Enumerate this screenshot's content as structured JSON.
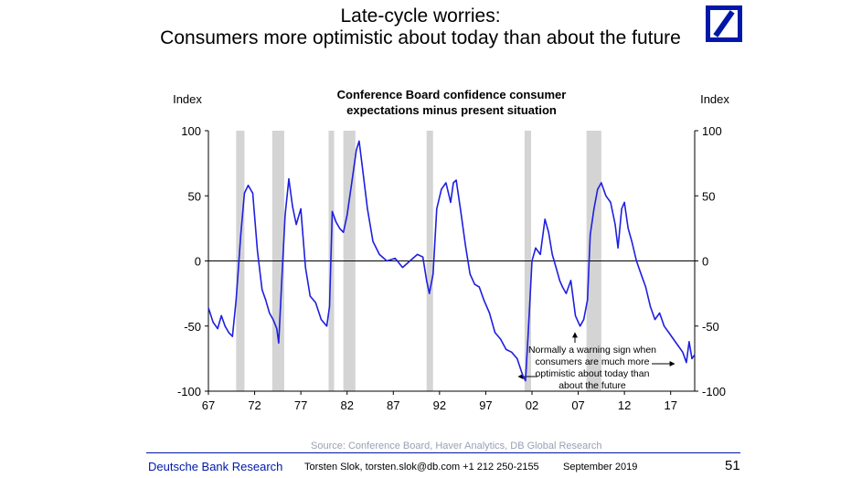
{
  "slide": {
    "title_line1": "Late-cycle worries:",
    "title_line2": "Consumers more optimistic about today than about the future"
  },
  "footer": {
    "brand": "Deutsche Bank Research",
    "contact": "Torsten Slok, torsten.slok@db.com  +1 212 250-2155",
    "date": "September 2019",
    "page": "51",
    "source": "Source: Conference Board, Haver Analytics, DB Global Research"
  },
  "colors": {
    "line": "#1f1fe0",
    "recession": "#d4d4d4",
    "brand": "#0018a8"
  },
  "chart_data": {
    "type": "line",
    "title": "Conference Board confidence consumer expectations minus present situation",
    "title_lines": [
      "Conference Board confidence consumer",
      "expectations minus present situation"
    ],
    "ylabel_left": "Index",
    "ylabel_right": "Index",
    "ylim": [
      -100,
      100
    ],
    "yticks": [
      -100,
      -50,
      0,
      50,
      100
    ],
    "xlim": [
      1967,
      2019.6
    ],
    "xticks": [
      {
        "x": 1967,
        "label": "67"
      },
      {
        "x": 1972,
        "label": "72"
      },
      {
        "x": 1977,
        "label": "77"
      },
      {
        "x": 1982,
        "label": "82"
      },
      {
        "x": 1987,
        "label": "87"
      },
      {
        "x": 1992,
        "label": "92"
      },
      {
        "x": 1997,
        "label": "97"
      },
      {
        "x": 2002,
        "label": "02"
      },
      {
        "x": 2007,
        "label": "07"
      },
      {
        "x": 2012,
        "label": "12"
      },
      {
        "x": 2017,
        "label": "17"
      }
    ],
    "recessions": [
      [
        1970.0,
        1970.9
      ],
      [
        1973.9,
        1975.2
      ],
      [
        1980.0,
        1980.6
      ],
      [
        1981.6,
        1982.9
      ],
      [
        1990.6,
        1991.3
      ],
      [
        2001.2,
        2001.9
      ],
      [
        2007.9,
        2009.5
      ]
    ],
    "series": [
      {
        "x": [
          1967.0,
          1967.5,
          1968.0,
          1968.4,
          1968.8,
          1969.2,
          1969.6,
          1970.0,
          1970.5,
          1970.9,
          1971.3,
          1971.8,
          1972.3,
          1972.8,
          1973.2,
          1973.6,
          1974.0,
          1974.4,
          1974.6,
          1974.9,
          1975.3,
          1975.7,
          1976.1,
          1976.5,
          1977.0,
          1977.5,
          1978.0,
          1978.6,
          1979.2,
          1979.8,
          1980.1,
          1980.4,
          1980.8,
          1981.2,
          1981.6,
          1982.0,
          1982.5,
          1983.0,
          1983.3,
          1983.6,
          1984.2,
          1984.8,
          1985.5,
          1986.3,
          1987.2,
          1988.0,
          1988.8,
          1989.6,
          1990.2,
          1990.6,
          1990.9,
          1991.3,
          1991.7,
          1992.2,
          1992.7,
          1993.2,
          1993.5,
          1993.8,
          1994.3,
          1994.8,
          1995.3,
          1995.8,
          1996.3,
          1996.8,
          1997.4,
          1998.0,
          1998.6,
          1999.2,
          1999.8,
          2000.4,
          2001.0,
          2001.3,
          2001.6,
          2002.0,
          2002.4,
          2002.9,
          2003.4,
          2003.8,
          2004.2,
          2004.6,
          2005.0,
          2005.3,
          2005.7,
          2006.2,
          2006.7,
          2007.2,
          2007.6,
          2008.0,
          2008.3,
          2008.7,
          2009.1,
          2009.5,
          2010.0,
          2010.5,
          2011.0,
          2011.3,
          2011.7,
          2012.0,
          2012.4,
          2012.8,
          2013.3,
          2013.8,
          2014.3,
          2014.8,
          2015.3,
          2015.8,
          2016.3,
          2016.8,
          2017.3,
          2017.8,
          2018.3,
          2018.7,
          2019.0,
          2019.3,
          2019.6
        ],
        "values": [
          -36,
          -47,
          -52,
          -42,
          -50,
          -55,
          -58,
          -30,
          20,
          52,
          58,
          52,
          8,
          -22,
          -30,
          -40,
          -45,
          -52,
          -63,
          -20,
          35,
          63,
          42,
          28,
          40,
          -5,
          -27,
          -32,
          -45,
          -50,
          -35,
          38,
          30,
          25,
          22,
          35,
          60,
          85,
          92,
          75,
          40,
          15,
          5,
          0,
          2,
          -5,
          0,
          5,
          3,
          -15,
          -25,
          -10,
          40,
          55,
          60,
          45,
          60,
          62,
          38,
          12,
          -10,
          -18,
          -20,
          -30,
          -40,
          -55,
          -60,
          -68,
          -70,
          -75,
          -88,
          -92,
          -55,
          0,
          10,
          5,
          32,
          22,
          5,
          -5,
          -15,
          -20,
          -25,
          -15,
          -42,
          -50,
          -45,
          -30,
          20,
          40,
          55,
          60,
          50,
          45,
          28,
          10,
          40,
          45,
          25,
          15,
          0,
          -10,
          -20,
          -35,
          -45,
          -40,
          -50,
          -55,
          -60,
          -65,
          -70,
          -78,
          -62,
          -75,
          -72
        ]
      }
    ],
    "annotation": "Normally a warning sign when consumers are much more optimistic about today than about the future",
    "annotation_lines": [
      "Normally a warning sign when",
      "consumers are much more",
      "optimistic about today than",
      "about the future"
    ]
  }
}
